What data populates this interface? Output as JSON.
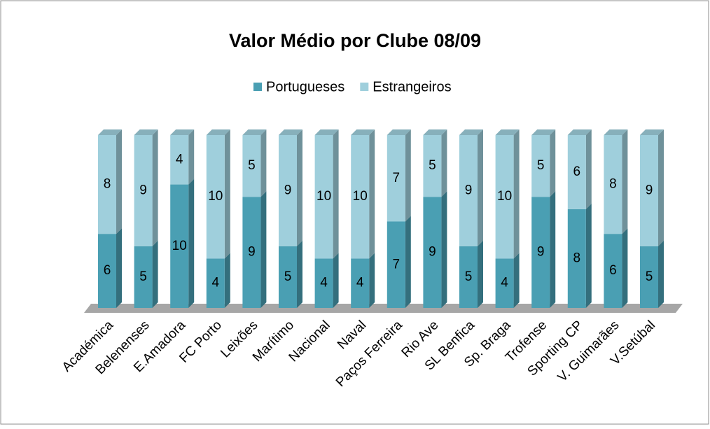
{
  "chart_data": {
    "type": "bar",
    "stacked": "percent",
    "title": "Valor Médio por Clube 08/09",
    "legend_position": "top",
    "categories": [
      "Académica",
      "Belenenses",
      "E.Amadora",
      "FC Porto",
      "Leixões",
      "Marítimo",
      "Nacional",
      "Naval",
      "Paços Ferreira",
      "Rio Ave",
      "SL Benfica",
      "Sp. Braga",
      "Trofense",
      "Sporting CP",
      "V. Guimarães",
      "V.Setúbal"
    ],
    "series": [
      {
        "name": "Portugueses",
        "color": "#4a9fb3",
        "values": [
          6,
          5,
          10,
          4,
          9,
          5,
          4,
          4,
          7,
          9,
          5,
          4,
          9,
          8,
          6,
          5
        ]
      },
      {
        "name": "Estrangeiros",
        "color": "#9fcfdc",
        "values": [
          8,
          9,
          4,
          10,
          5,
          9,
          10,
          10,
          7,
          5,
          9,
          10,
          5,
          6,
          8,
          9
        ]
      }
    ]
  }
}
